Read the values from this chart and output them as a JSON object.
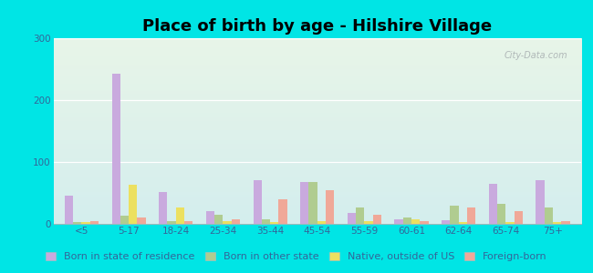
{
  "title": "Place of birth by age - Hilshire Village",
  "categories": [
    "<5",
    "5-17",
    "18-24",
    "25-34",
    "35-44",
    "45-54",
    "55-59",
    "60-61",
    "62-64",
    "65-74",
    "75+"
  ],
  "series": {
    "Born in state of residence": [
      45,
      243,
      52,
      20,
      70,
      68,
      18,
      7,
      6,
      65,
      70
    ],
    "Born in other state": [
      3,
      13,
      5,
      15,
      8,
      68,
      27,
      10,
      30,
      33,
      27
    ],
    "Native, outside of US": [
      3,
      63,
      27,
      5,
      3,
      5,
      5,
      8,
      3,
      3,
      3
    ],
    "Foreign-born": [
      5,
      10,
      5,
      7,
      40,
      55,
      15,
      5,
      27,
      20,
      5
    ]
  },
  "colors": {
    "Born in state of residence": "#c9aade",
    "Born in other state": "#b0cc90",
    "Native, outside of US": "#ece060",
    "Foreign-born": "#f0a898"
  },
  "ylim": [
    0,
    300
  ],
  "yticks": [
    0,
    100,
    200,
    300
  ],
  "background_color": "#00e5e5",
  "title_fontsize": 13,
  "legend_fontsize": 8,
  "tick_fontsize": 7.5,
  "bar_width": 0.18,
  "watermark": "City-Data.com"
}
